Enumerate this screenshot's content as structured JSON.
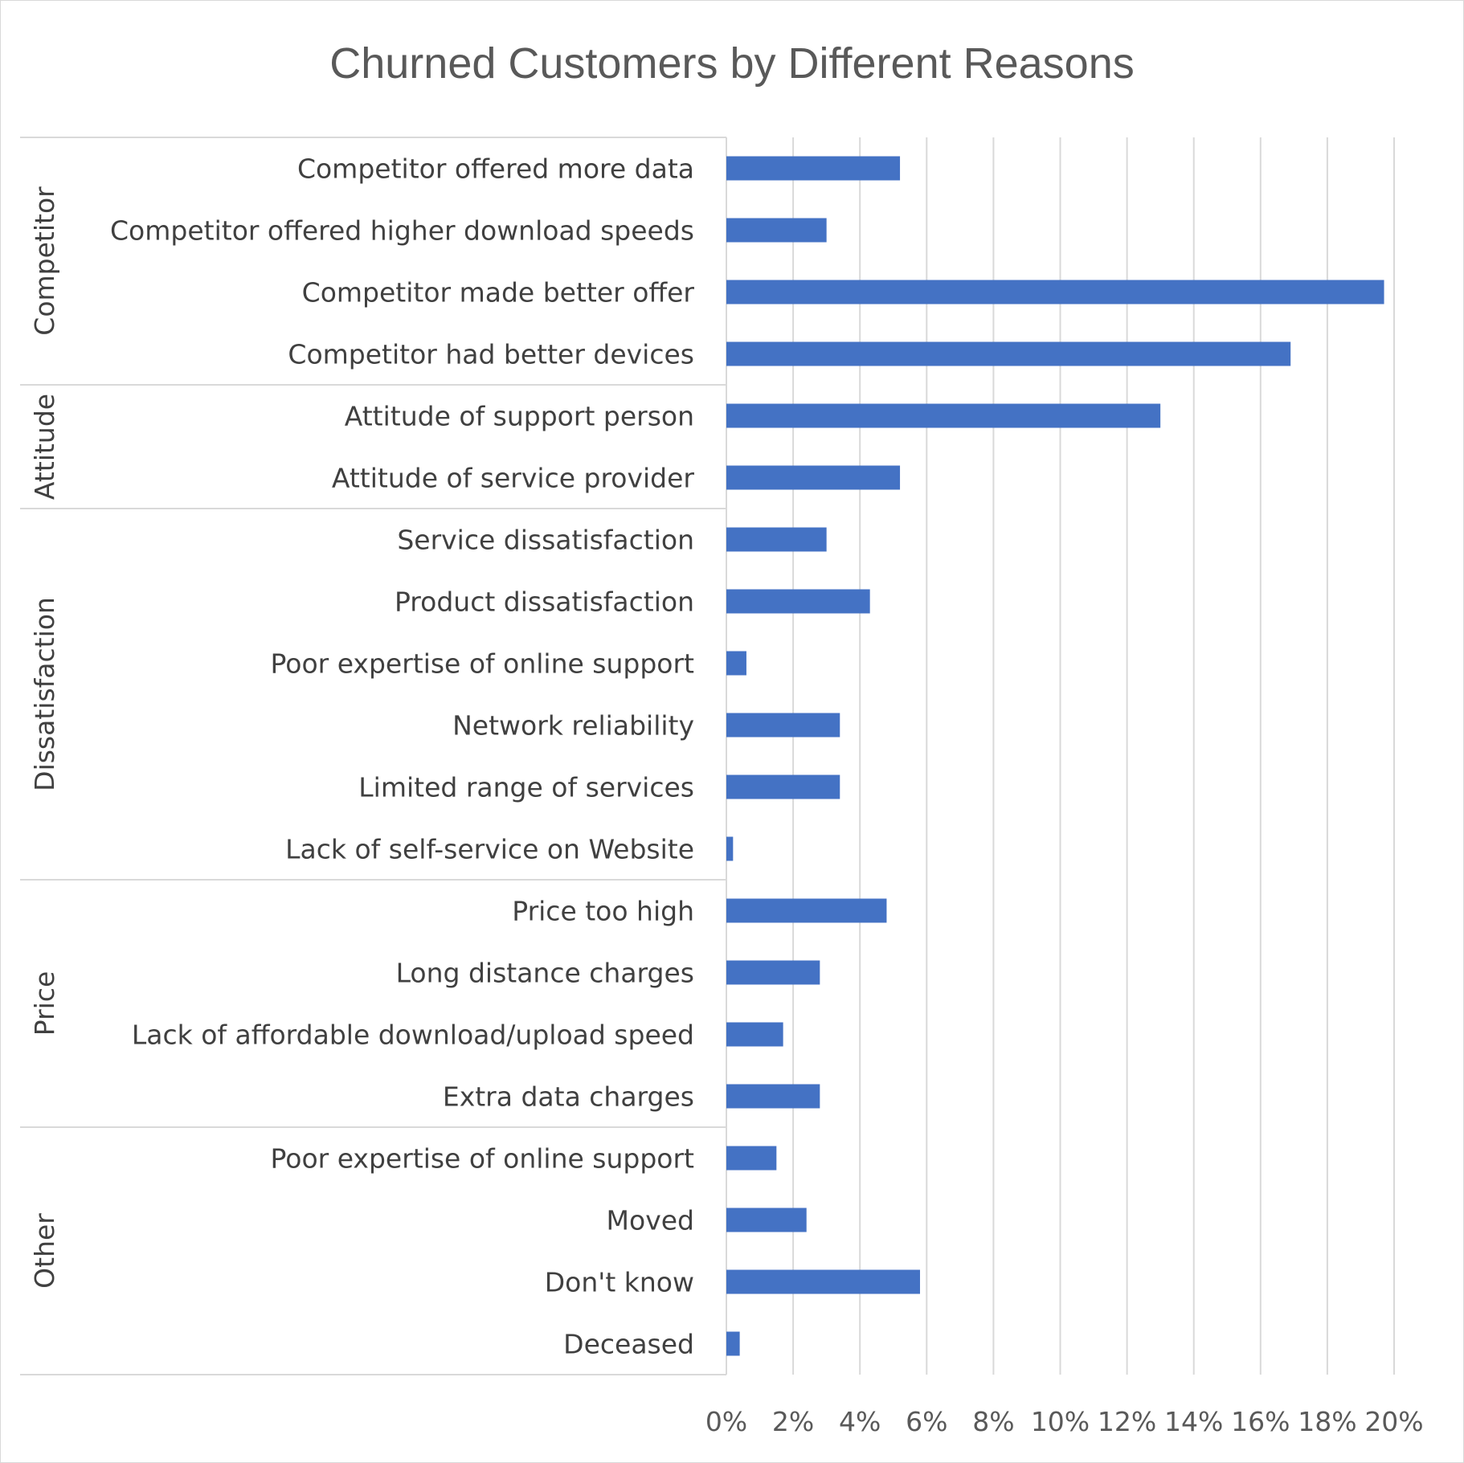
{
  "chart_data": {
    "type": "bar",
    "orientation": "horizontal",
    "title": "Churned Customers by Different Reasons",
    "xlabel": "",
    "ylabel": "",
    "xlim": [
      0,
      20
    ],
    "x_ticks": [
      "0%",
      "2%",
      "4%",
      "6%",
      "8%",
      "10%",
      "12%",
      "14%",
      "16%",
      "18%",
      "20%"
    ],
    "grid": true,
    "legend": "none",
    "bar_color": "#4472C4",
    "groups": [
      {
        "name": "Competitor",
        "categories": [
          "Competitor offered more data",
          "Competitor offered higher download speeds",
          "Competitor made better offer",
          "Competitor had better devices"
        ],
        "values": [
          5.2,
          3.0,
          19.7,
          16.9
        ]
      },
      {
        "name": "Attitude",
        "categories": [
          "Attitude of support person",
          "Attitude of service provider"
        ],
        "values": [
          13.0,
          5.2
        ]
      },
      {
        "name": "Dissatisfaction",
        "categories": [
          "Service dissatisfaction",
          "Product dissatisfaction",
          "Poor expertise of online support",
          "Network reliability",
          "Limited range of services",
          "Lack of self-service on Website"
        ],
        "values": [
          3.0,
          4.3,
          0.6,
          3.4,
          3.4,
          0.2
        ]
      },
      {
        "name": "Price",
        "categories": [
          "Price too high",
          "Long distance charges",
          "Lack of affordable download/upload speed",
          "Extra data charges"
        ],
        "values": [
          4.8,
          2.8,
          1.7,
          2.8
        ]
      },
      {
        "name": "Other",
        "categories": [
          "Poor expertise of online support",
          "Moved",
          "Don't know",
          "Deceased"
        ],
        "values": [
          1.5,
          2.4,
          5.8,
          0.4
        ]
      }
    ]
  }
}
